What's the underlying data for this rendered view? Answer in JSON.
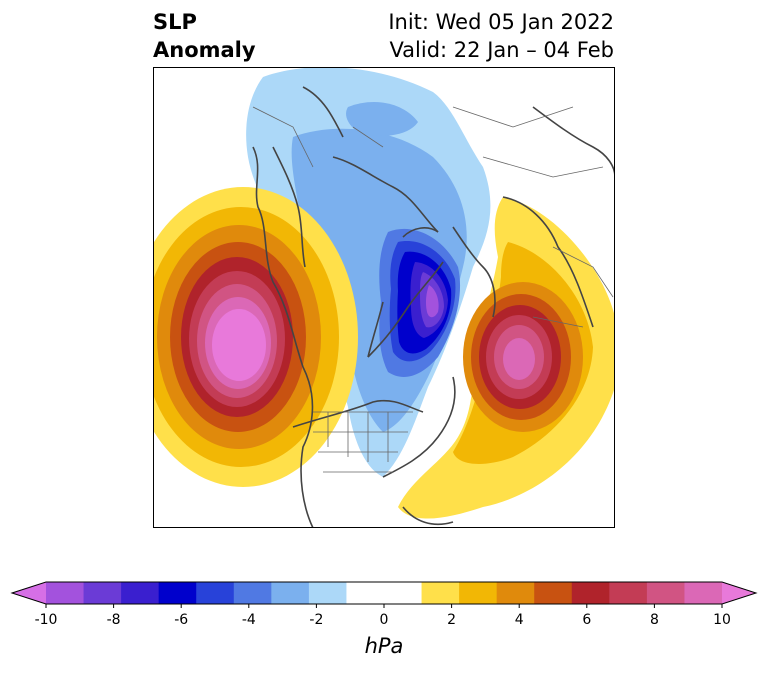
{
  "header": {
    "variable": "SLP",
    "subtitle": "Anomaly",
    "init": "Init: Wed 05 Jan 2022",
    "valid": "Valid: 22 Jan – 04 Feb"
  },
  "colorbar": {
    "units": "hPa",
    "tick_labels": [
      "-10",
      "-8",
      "-6",
      "-4",
      "-2",
      "0",
      "2",
      "4",
      "6",
      "8",
      "10"
    ],
    "colors": [
      "#d66fe6",
      "#a352dd",
      "#6b3bd6",
      "#3a1fcf",
      "#0000cc",
      "#2842d9",
      "#5079e3",
      "#7bb0ee",
      "#acd8f8",
      "#ffffff",
      "#ffffff",
      "#ffe04a",
      "#f2b705",
      "#e08a0c",
      "#c85211",
      "#b0232b",
      "#c33c55",
      "#d15483",
      "#db68b6",
      "#e879da"
    ]
  },
  "map": {
    "projection": "north-polar-stereographic",
    "features": [
      {
        "name": "pacific-high",
        "sign": "positive",
        "peak_hPa": 10
      },
      {
        "name": "atlantic-high",
        "sign": "positive",
        "peak_hPa": 9
      },
      {
        "name": "arctic-low",
        "sign": "negative",
        "peak_hPa": -8
      }
    ]
  }
}
